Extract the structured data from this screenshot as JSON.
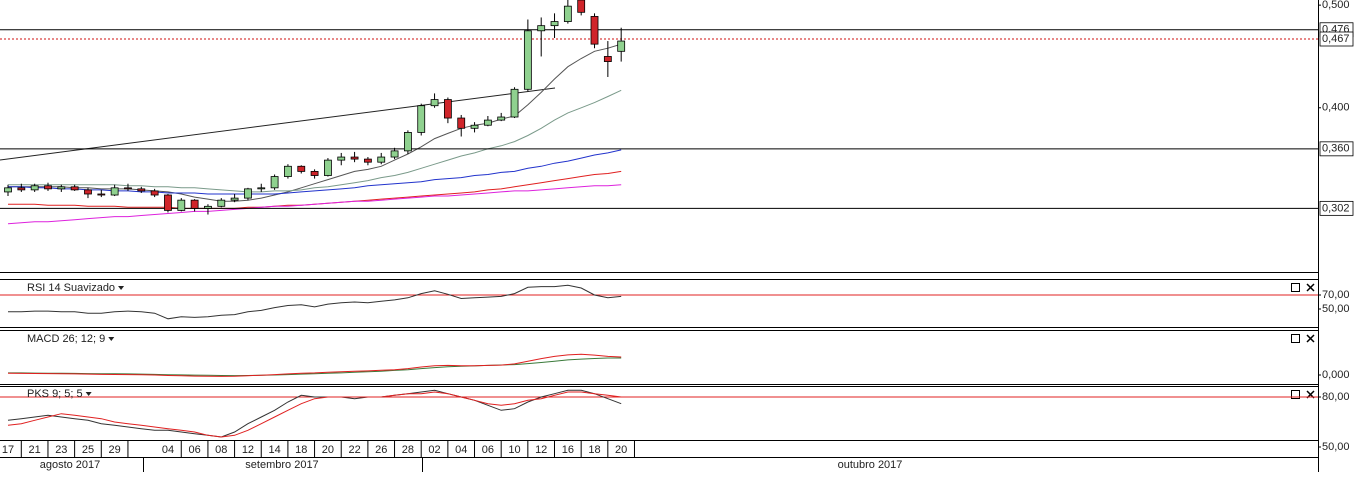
{
  "chart_data": [
    {
      "type": "candlestick",
      "categories": [
        "17",
        null,
        "21",
        null,
        "23",
        null,
        "25",
        null,
        "29",
        null,
        null,
        null,
        "04",
        null,
        "06",
        null,
        "08",
        null,
        "12",
        null,
        "14",
        null,
        "18",
        null,
        "20",
        null,
        "22",
        null,
        "26",
        null,
        "28",
        null,
        "02",
        null,
        "04",
        null,
        "06",
        null,
        "10",
        null,
        "12",
        null,
        "16",
        null,
        "18",
        null,
        "20"
      ],
      "months": [
        "agosto 2017",
        "setembro 2017",
        "outubro 2017"
      ],
      "open": [
        0.318,
        0.322,
        0.32,
        0.324,
        0.321,
        0.323,
        0.32,
        0.316,
        0.315,
        0.322,
        0.321,
        0.319,
        0.315,
        0.3,
        0.31,
        0.302,
        0.304,
        0.31,
        0.312,
        0.321,
        0.322,
        0.333,
        0.343,
        0.338,
        0.334,
        0.349,
        0.352,
        0.35,
        0.347,
        0.352,
        0.358,
        0.376,
        0.402,
        0.408,
        0.39,
        0.38,
        0.383,
        0.388,
        0.391,
        0.418,
        0.475,
        0.48,
        0.484,
        0.505,
        0.489,
        0.45,
        0.455
      ],
      "high": [
        0.325,
        0.326,
        0.326,
        0.327,
        0.325,
        0.325,
        0.322,
        0.32,
        0.325,
        0.326,
        0.323,
        0.321,
        0.316,
        0.312,
        0.311,
        0.306,
        0.312,
        0.316,
        0.322,
        0.326,
        0.335,
        0.345,
        0.344,
        0.34,
        0.351,
        0.356,
        0.357,
        0.352,
        0.356,
        0.361,
        0.378,
        0.404,
        0.414,
        0.41,
        0.393,
        0.386,
        0.392,
        0.395,
        0.42,
        0.486,
        0.488,
        0.492,
        0.506,
        0.506,
        0.492,
        0.465,
        0.478
      ],
      "low": [
        0.314,
        0.318,
        0.318,
        0.319,
        0.318,
        0.319,
        0.312,
        0.313,
        0.314,
        0.319,
        0.317,
        0.313,
        0.298,
        0.299,
        0.299,
        0.296,
        0.303,
        0.308,
        0.31,
        0.318,
        0.32,
        0.331,
        0.336,
        0.331,
        0.333,
        0.344,
        0.347,
        0.344,
        0.345,
        0.35,
        0.355,
        0.373,
        0.4,
        0.385,
        0.372,
        0.376,
        0.382,
        0.387,
        0.39,
        0.416,
        0.45,
        0.468,
        0.482,
        0.49,
        0.458,
        0.43,
        0.445
      ],
      "close": [
        0.322,
        0.32,
        0.324,
        0.321,
        0.323,
        0.32,
        0.316,
        0.315,
        0.322,
        0.321,
        0.319,
        0.315,
        0.3,
        0.31,
        0.302,
        0.304,
        0.31,
        0.312,
        0.321,
        0.322,
        0.333,
        0.343,
        0.338,
        0.334,
        0.349,
        0.352,
        0.35,
        0.347,
        0.352,
        0.358,
        0.376,
        0.402,
        0.408,
        0.39,
        0.38,
        0.383,
        0.388,
        0.391,
        0.418,
        0.475,
        0.48,
        0.484,
        0.499,
        0.493,
        0.462,
        0.445,
        0.465
      ],
      "up_color": "#8fd18f",
      "down_color": "#d0242a",
      "series": [
        {
          "color": "#555555",
          "values": [
            0.323,
            0.323,
            0.323,
            0.323,
            0.323,
            0.322,
            0.322,
            0.321,
            0.321,
            0.321,
            0.32,
            0.319,
            0.318,
            0.316,
            0.313,
            0.311,
            0.309,
            0.309,
            0.31,
            0.312,
            0.315,
            0.318,
            0.322,
            0.326,
            0.33,
            0.334,
            0.338,
            0.34,
            0.343,
            0.349,
            0.355,
            0.362,
            0.37,
            0.375,
            0.38,
            0.383,
            0.385,
            0.389,
            0.392,
            0.403,
            0.415,
            0.428,
            0.44,
            0.448,
            0.455,
            0.458,
            0.462
          ]
        },
        {
          "color": "#7a9a8a",
          "values": [
            0.325,
            0.325,
            0.325,
            0.325,
            0.325,
            0.325,
            0.325,
            0.325,
            0.325,
            0.324,
            0.324,
            0.323,
            0.323,
            0.322,
            0.322,
            0.321,
            0.32,
            0.319,
            0.318,
            0.318,
            0.319,
            0.319,
            0.32,
            0.322,
            0.323,
            0.325,
            0.327,
            0.329,
            0.332,
            0.334,
            0.337,
            0.341,
            0.345,
            0.349,
            0.353,
            0.356,
            0.36,
            0.363,
            0.367,
            0.373,
            0.38,
            0.388,
            0.395,
            0.4,
            0.405,
            0.411,
            0.417
          ]
        },
        {
          "color": "#2233cc",
          "values": [
            0.323,
            0.323,
            0.322,
            0.322,
            0.321,
            0.321,
            0.32,
            0.32,
            0.319,
            0.319,
            0.318,
            0.318,
            0.317,
            0.317,
            0.317,
            0.316,
            0.316,
            0.316,
            0.316,
            0.316,
            0.316,
            0.317,
            0.318,
            0.319,
            0.32,
            0.321,
            0.322,
            0.324,
            0.325,
            0.326,
            0.327,
            0.328,
            0.33,
            0.331,
            0.332,
            0.334,
            0.335,
            0.337,
            0.338,
            0.341,
            0.343,
            0.346,
            0.348,
            0.351,
            0.354,
            0.356,
            0.359
          ]
        },
        {
          "color": "#e02020",
          "values": [
            0.306,
            0.306,
            0.306,
            0.305,
            0.305,
            0.305,
            0.304,
            0.304,
            0.304,
            0.303,
            0.303,
            0.303,
            0.303,
            0.302,
            0.302,
            0.302,
            0.302,
            0.302,
            0.303,
            0.303,
            0.304,
            0.305,
            0.305,
            0.306,
            0.307,
            0.308,
            0.309,
            0.31,
            0.311,
            0.312,
            0.313,
            0.314,
            0.315,
            0.316,
            0.317,
            0.318,
            0.32,
            0.321,
            0.323,
            0.325,
            0.327,
            0.329,
            0.331,
            0.333,
            0.335,
            0.336,
            0.338
          ]
        },
        {
          "color": "#dd22dd",
          "values": [
            0.287,
            0.288,
            0.289,
            0.289,
            0.29,
            0.291,
            0.292,
            0.293,
            0.294,
            0.294,
            0.295,
            0.296,
            0.297,
            0.298,
            0.299,
            0.299,
            0.3,
            0.301,
            0.302,
            0.303,
            0.304,
            0.304,
            0.305,
            0.306,
            0.307,
            0.308,
            0.309,
            0.309,
            0.31,
            0.311,
            0.312,
            0.313,
            0.314,
            0.314,
            0.315,
            0.316,
            0.317,
            0.318,
            0.319,
            0.319,
            0.32,
            0.321,
            0.322,
            0.323,
            0.324,
            0.324,
            0.325
          ]
        }
      ],
      "ylim": [
        0.24,
        0.505
      ],
      "yticks": [
        {
          "value": 0.5,
          "label": "0,500"
        },
        {
          "value": 0.4,
          "label": "0,400"
        }
      ],
      "price_lines": [
        {
          "value": 0.476,
          "label": "0,476",
          "color": "#000000",
          "style": "solid"
        },
        {
          "value": 0.467,
          "label": "0,467",
          "color": "#d01010",
          "style": "dotted"
        },
        {
          "value": 0.36,
          "label": "0,360",
          "color": "#000000",
          "style": "solid"
        },
        {
          "value": 0.302,
          "label": "0,302",
          "color": "#000000",
          "style": "solid"
        }
      ]
    },
    {
      "type": "line",
      "title": "RSI 14 Suavizado",
      "title_color": "#222222",
      "series": [
        {
          "color": "#333333",
          "values": [
            46,
            46,
            47,
            47,
            46,
            46,
            44,
            44,
            46,
            47,
            46,
            44,
            36,
            39,
            38,
            39,
            41,
            42,
            46,
            48,
            52,
            55,
            56,
            53,
            57,
            59,
            60,
            59,
            61,
            63,
            66,
            72,
            76,
            71,
            65,
            66,
            67,
            68,
            72,
            81,
            82,
            82,
            84,
            80,
            70,
            66,
            68
          ]
        }
      ],
      "ylim": [
        24.3,
        91.4
      ],
      "yticks": [
        {
          "value": 70,
          "label": "70,00",
          "grid_color": "#e02020"
        },
        {
          "value": 50,
          "label": "50,00"
        }
      ]
    },
    {
      "type": "line",
      "title": "MACD 26; 12; 9",
      "title_color": "#2e7d32",
      "series": [
        {
          "color": "#3a7a3a",
          "values": [
            0.002,
            0.002,
            0.0018,
            0.0017,
            0.0016,
            0.0015,
            0.0013,
            0.0012,
            0.0011,
            0.001,
            0.0008,
            0.0006,
            0.0003,
            0.0001,
            -0.0001,
            -0.0003,
            -0.0005,
            -0.0006,
            -0.0005,
            -0.0003,
            0,
            0.0004,
            0.0008,
            0.0012,
            0.0016,
            0.002,
            0.0025,
            0.003,
            0.0036,
            0.0043,
            0.005,
            0.006,
            0.007,
            0.0077,
            0.0082,
            0.0086,
            0.009,
            0.0094,
            0.0098,
            0.0107,
            0.0118,
            0.013,
            0.0142,
            0.015,
            0.0156,
            0.016,
            0.016
          ]
        },
        {
          "color": "#e02020",
          "values": [
            0.0016,
            0.0015,
            0.0014,
            0.0013,
            0.0012,
            0.001,
            0.0008,
            0.0006,
            0.0005,
            0.0004,
            0.0002,
            0,
            -0.0005,
            -0.0008,
            -0.001,
            -0.0012,
            -0.0013,
            -0.0011,
            -0.0007,
            -0.0002,
            0.0004,
            0.001,
            0.0016,
            0.002,
            0.0026,
            0.003,
            0.0035,
            0.0039,
            0.0044,
            0.005,
            0.006,
            0.0075,
            0.0088,
            0.009,
            0.0088,
            0.0088,
            0.009,
            0.0093,
            0.0105,
            0.013,
            0.0155,
            0.0175,
            0.019,
            0.0195,
            0.0188,
            0.0175,
            0.017
          ]
        }
      ],
      "ylim": [
        -0.0085,
        0.0415
      ],
      "yticks": [
        {
          "value": 0,
          "label": "0,000"
        }
      ]
    },
    {
      "type": "line",
      "title": "PKS 9; 5; 5",
      "title_color": "#222222",
      "series": [
        {
          "color": "#333333",
          "values": [
            66,
            67,
            68,
            69,
            68,
            67,
            66,
            64,
            63,
            62,
            61,
            60,
            60,
            59,
            58,
            57,
            56,
            59,
            64,
            68,
            72,
            77,
            81,
            80,
            80,
            80,
            79,
            80,
            80,
            81,
            82,
            83,
            84,
            82,
            80,
            78,
            75,
            72,
            73,
            77,
            80,
            82,
            84,
            84,
            82,
            79,
            76
          ]
        },
        {
          "color": "#e02020",
          "values": [
            63,
            64,
            66,
            68,
            70,
            69,
            68,
            67,
            65,
            64,
            63,
            62,
            61,
            60,
            59,
            57,
            56,
            57,
            60,
            64,
            68,
            72,
            76,
            79,
            80,
            80,
            80,
            80,
            80,
            81,
            82,
            82,
            83,
            82,
            80,
            78,
            76,
            75,
            76,
            78,
            79,
            81,
            83,
            83,
            82,
            81,
            80
          ]
        }
      ],
      "ylim": [
        50,
        86.6
      ],
      "yticks": [
        {
          "value": 80,
          "label": "80,00",
          "grid_color": "#e02020"
        },
        {
          "value": 50,
          "label": "50,00"
        }
      ]
    }
  ]
}
